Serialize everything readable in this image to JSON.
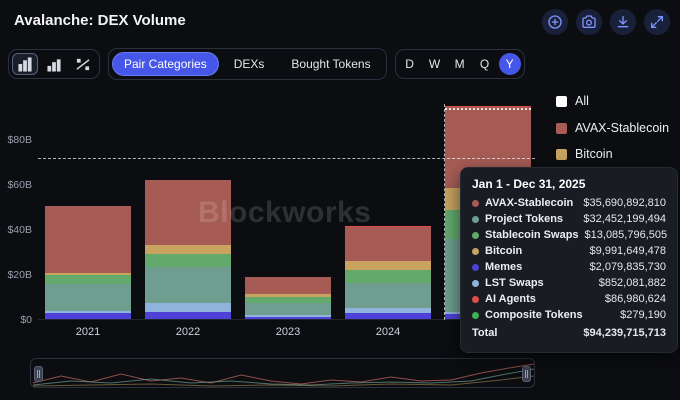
{
  "theme": {
    "accent": "#4656e8",
    "background": "#0c0d11",
    "tooltip_bg": "#191c23"
  },
  "header": {
    "title": "Avalanche: DEX Volume",
    "actions": [
      {
        "name": "add",
        "icon": "plus-circle-icon"
      },
      {
        "name": "screenshot",
        "icon": "camera-icon"
      },
      {
        "name": "download",
        "icon": "download-icon"
      },
      {
        "name": "expand",
        "icon": "expand-icon"
      }
    ]
  },
  "toolbar": {
    "chart_types": [
      {
        "name": "stacked-bar",
        "active": true
      },
      {
        "name": "grouped-bar",
        "active": false
      },
      {
        "name": "percent-trend",
        "active": false
      }
    ],
    "tabs": [
      {
        "label": "Pair Categories",
        "active": true
      },
      {
        "label": "DEXs",
        "active": false
      },
      {
        "label": "Bought Tokens",
        "active": false
      }
    ],
    "ranges": [
      {
        "label": "D",
        "active": false
      },
      {
        "label": "W",
        "active": false
      },
      {
        "label": "M",
        "active": false
      },
      {
        "label": "Q",
        "active": false
      },
      {
        "label": "Y",
        "active": true
      }
    ]
  },
  "watermark": "Blockworks",
  "legend": {
    "items": [
      {
        "label": "All",
        "color": "#ffffff"
      },
      {
        "label": "AVAX-Stablecoin",
        "color": "#a65c55"
      },
      {
        "label": "Bitcoin",
        "color": "#c7a35f"
      }
    ]
  },
  "tooltip": {
    "title": "Jan 1 - Dec 31, 2025",
    "rows": [
      {
        "label": "AVAX-Stablecoin",
        "value": "$35,690,892,810",
        "color": "#a65c55"
      },
      {
        "label": "Project Tokens",
        "value": "$32,452,199,494",
        "color": "#6f9e91"
      },
      {
        "label": "Stablecoin Swaps",
        "value": "$13,085,796,505",
        "color": "#63a96c"
      },
      {
        "label": "Bitcoin",
        "value": "$9,991,649,478",
        "color": "#c7a35f"
      },
      {
        "label": "Memes",
        "value": "$2,079,835,730",
        "color": "#4d41d8"
      },
      {
        "label": "LST Swaps",
        "value": "$852,081,882",
        "color": "#8fb3dc"
      },
      {
        "label": "AI Agents",
        "value": "$86,980,624",
        "color": "#dd5048"
      },
      {
        "label": "Composite Tokens",
        "value": "$279,190",
        "color": "#3fae58"
      }
    ],
    "total_label": "Total",
    "total_value": "$94,239,715,713"
  },
  "chart_data": {
    "type": "bar",
    "stacked": true,
    "title": "Avalanche: DEX Volume",
    "unit": "USD billions",
    "categories": [
      "2021",
      "2022",
      "2023",
      "2024",
      "2025"
    ],
    "ylim": [
      0,
      100
    ],
    "yticks": [
      {
        "label": "$0",
        "value": 0
      },
      {
        "label": "$20B",
        "value": 20
      },
      {
        "label": "$40B",
        "value": 40
      },
      {
        "label": "$60B",
        "value": 60
      },
      {
        "label": "$80B",
        "value": 80
      }
    ],
    "series": [
      {
        "name": "Memes",
        "color": "#4d41d8",
        "values": [
          2.5,
          3,
          1,
          2.5,
          2.08
        ]
      },
      {
        "name": "LST Swaps",
        "color": "#8fb3dc",
        "values": [
          1,
          4,
          0.8,
          2.5,
          0.85
        ]
      },
      {
        "name": "Project Tokens",
        "color": "#6f9e91",
        "values": [
          12,
          16,
          5.5,
          11,
          32.45
        ]
      },
      {
        "name": "Stablecoin Swaps",
        "color": "#63a96c",
        "values": [
          4,
          6,
          2.5,
          6,
          13.09
        ]
      },
      {
        "name": "Bitcoin",
        "color": "#c7a35f",
        "values": [
          0.8,
          4,
          1.2,
          4,
          9.99
        ]
      },
      {
        "name": "AVAX-Stablecoin",
        "color": "#a65c55",
        "values": [
          30,
          29,
          7.5,
          15,
          35.69
        ]
      },
      {
        "name": "AI Agents",
        "color": "#dd5048",
        "values": [
          0,
          0,
          0,
          0.5,
          0.087
        ]
      },
      {
        "name": "Composite Tokens",
        "color": "#3fae58",
        "values": [
          0,
          0,
          0,
          0,
          0.0003
        ]
      }
    ],
    "hovered_category": "2025",
    "grid": false,
    "legend_position": "right"
  }
}
